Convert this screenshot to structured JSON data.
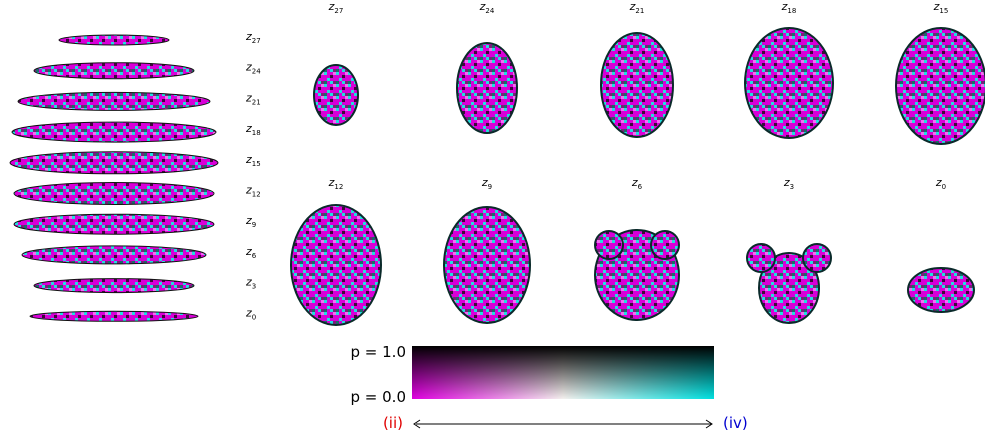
{
  "slices": [
    {
      "var": "z",
      "sub": "27"
    },
    {
      "var": "z",
      "sub": "24"
    },
    {
      "var": "z",
      "sub": "21"
    },
    {
      "var": "z",
      "sub": "18"
    },
    {
      "var": "z",
      "sub": "15"
    },
    {
      "var": "z",
      "sub": "12"
    },
    {
      "var": "z",
      "sub": "9"
    },
    {
      "var": "z",
      "sub": "6"
    },
    {
      "var": "z",
      "sub": "3"
    },
    {
      "var": "z",
      "sub": "0"
    }
  ],
  "colorbar": {
    "top_label": "p = 1.0",
    "bottom_label": "p = 0.0"
  },
  "axis": {
    "left_label": "(ii)",
    "right_label": "(iv)"
  }
}
